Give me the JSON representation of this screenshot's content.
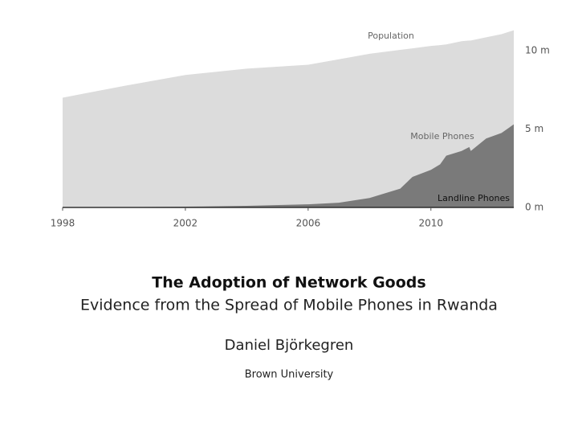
{
  "chart_data": {
    "type": "area",
    "x": [
      1998,
      2000,
      2002,
      2004,
      2006,
      2007,
      2008,
      2009,
      2009.4,
      2010,
      2010.3,
      2010.5,
      2011,
      2011.25,
      2011.3,
      2011.8,
      2012.3,
      2012.7
    ],
    "series": [
      {
        "name": "Population",
        "color": "#dcdcdc",
        "values": [
          7.0,
          7.75,
          8.45,
          8.85,
          9.1,
          9.45,
          9.8,
          10.05,
          10.15,
          10.3,
          10.35,
          10.4,
          10.6,
          10.65,
          10.65,
          10.85,
          11.05,
          11.3
        ]
      },
      {
        "name": "Mobile Phones",
        "color": "#7a7a7a",
        "values": [
          0,
          0.02,
          0.05,
          0.1,
          0.2,
          0.3,
          0.6,
          1.2,
          1.95,
          2.4,
          2.75,
          3.3,
          3.6,
          3.85,
          3.6,
          4.4,
          4.75,
          5.3
        ]
      },
      {
        "name": "Landline Phones",
        "color": "#222222",
        "values": [
          0.02,
          0.02,
          0.02,
          0.02,
          0.03,
          0.03,
          0.03,
          0.03,
          0.03,
          0.04,
          0.04,
          0.04,
          0.04,
          0.04,
          0.04,
          0.04,
          0.04,
          0.04
        ]
      }
    ],
    "xlim": [
      1998,
      2012.7
    ],
    "xticks": [
      1998,
      2002,
      2006,
      2010
    ],
    "ylim": [
      0,
      12
    ],
    "yticks": [
      {
        "value": 0,
        "label": "0 m"
      },
      {
        "value": 5,
        "label": "5 m"
      },
      {
        "value": 10,
        "label": "10 m"
      }
    ]
  },
  "slide": {
    "title": "The Adoption of Network Goods",
    "subtitle": "Evidence from the Spread of Mobile Phones in Rwanda",
    "author": "Daniel Björkegren",
    "affiliation": "Brown University"
  }
}
